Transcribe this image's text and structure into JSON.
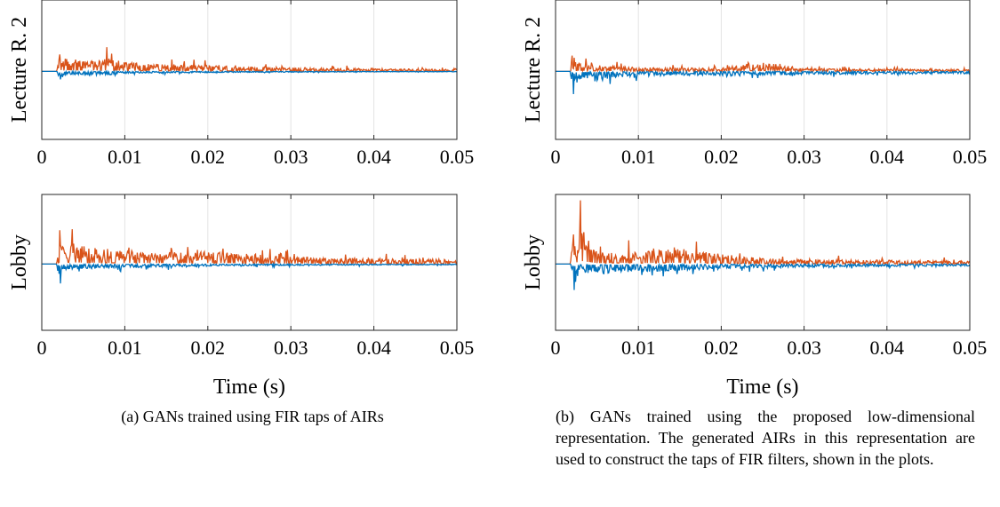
{
  "chart_data": [
    {
      "type": "line",
      "panel": "a",
      "ylabel": "Lecture R. 2",
      "xlabel": "",
      "xlim": [
        0,
        0.05
      ],
      "xticks": [
        "0",
        "0.01",
        "0.02",
        "0.03",
        "0.04",
        "0.05"
      ],
      "grid": "vertical",
      "series": [
        {
          "color": "#D95319",
          "role": "orange",
          "points": [
            [
              0.0018,
              0.02
            ],
            [
              0.002,
              0.2
            ],
            [
              0.0022,
              0.55
            ],
            [
              0.0025,
              0.25
            ],
            [
              0.003,
              0.35
            ],
            [
              0.004,
              0.3
            ],
            [
              0.005,
              0.28
            ],
            [
              0.006,
              0.3
            ],
            [
              0.007,
              0.3
            ],
            [
              0.008,
              0.32
            ],
            [
              0.009,
              0.25
            ],
            [
              0.01,
              0.22
            ],
            [
              0.012,
              0.2
            ],
            [
              0.015,
              0.18
            ],
            [
              0.02,
              0.15
            ],
            [
              0.025,
              0.12
            ],
            [
              0.03,
              0.1
            ],
            [
              0.035,
              0.08
            ],
            [
              0.04,
              0.07
            ],
            [
              0.045,
              0.06
            ],
            [
              0.05,
              0.05
            ]
          ]
        },
        {
          "color": "#0072BD",
          "role": "blue",
          "points": [
            [
              0.0018,
              -0.02
            ],
            [
              0.002,
              -0.15
            ],
            [
              0.0022,
              -0.35
            ],
            [
              0.0025,
              -0.15
            ],
            [
              0.003,
              -0.1
            ],
            [
              0.005,
              -0.08
            ],
            [
              0.008,
              -0.1
            ],
            [
              0.01,
              -0.05
            ],
            [
              0.015,
              -0.04
            ],
            [
              0.02,
              -0.03
            ],
            [
              0.03,
              -0.02
            ],
            [
              0.04,
              -0.015
            ],
            [
              0.05,
              -0.01
            ]
          ]
        }
      ]
    },
    {
      "type": "line",
      "panel": "b",
      "ylabel": "Lecture R. 2",
      "xlabel": "",
      "xlim": [
        0,
        0.05
      ],
      "xticks": [
        "0",
        "0.01",
        "0.02",
        "0.03",
        "0.04",
        "0.05"
      ],
      "grid": "vertical",
      "series": [
        {
          "color": "#D95319",
          "role": "orange",
          "points": [
            [
              0.0018,
              0.05
            ],
            [
              0.002,
              0.6
            ],
            [
              0.0021,
              1.05
            ],
            [
              0.0023,
              0.3
            ],
            [
              0.003,
              0.2
            ],
            [
              0.005,
              0.15
            ],
            [
              0.008,
              0.12
            ],
            [
              0.01,
              0.1
            ],
            [
              0.015,
              0.09
            ],
            [
              0.02,
              0.08
            ],
            [
              0.025,
              0.25
            ],
            [
              0.03,
              0.07
            ],
            [
              0.04,
              0.06
            ],
            [
              0.05,
              0.05
            ]
          ]
        },
        {
          "color": "#0072BD",
          "role": "blue",
          "points": [
            [
              0.0018,
              -0.05
            ],
            [
              0.002,
              -0.4
            ],
            [
              0.0022,
              -0.75
            ],
            [
              0.0025,
              -0.3
            ],
            [
              0.003,
              -0.2
            ],
            [
              0.005,
              -0.25
            ],
            [
              0.007,
              -0.15
            ],
            [
              0.01,
              -0.12
            ],
            [
              0.015,
              -0.1
            ],
            [
              0.02,
              -0.1
            ],
            [
              0.03,
              -0.08
            ],
            [
              0.04,
              -0.07
            ],
            [
              0.05,
              -0.06
            ]
          ]
        }
      ]
    },
    {
      "type": "line",
      "panel": "a",
      "ylabel": "Lobby",
      "xlabel": "Time (s)",
      "xlim": [
        0,
        0.05
      ],
      "xticks": [
        "0",
        "0.01",
        "0.02",
        "0.03",
        "0.04",
        "0.05"
      ],
      "grid": "vertical",
      "series": [
        {
          "color": "#D95319",
          "role": "orange",
          "points": [
            [
              0.0018,
              0.05
            ],
            [
              0.002,
              0.4
            ],
            [
              0.0022,
              0.72
            ],
            [
              0.0025,
              0.45
            ],
            [
              0.003,
              0.5
            ],
            [
              0.005,
              0.45
            ],
            [
              0.007,
              0.4
            ],
            [
              0.01,
              0.35
            ],
            [
              0.015,
              0.3
            ],
            [
              0.02,
              0.32
            ],
            [
              0.025,
              0.25
            ],
            [
              0.03,
              0.18
            ],
            [
              0.04,
              0.14
            ],
            [
              0.05,
              0.12
            ]
          ]
        },
        {
          "color": "#0072BD",
          "role": "blue",
          "points": [
            [
              0.0018,
              -0.05
            ],
            [
              0.002,
              -0.3
            ],
            [
              0.0022,
              -0.6
            ],
            [
              0.0025,
              -0.2
            ],
            [
              0.003,
              -0.15
            ],
            [
              0.005,
              -0.12
            ],
            [
              0.01,
              -0.1
            ],
            [
              0.015,
              -0.08
            ],
            [
              0.02,
              -0.05
            ],
            [
              0.03,
              -0.04
            ],
            [
              0.04,
              -0.03
            ],
            [
              0.05,
              -0.02
            ]
          ]
        }
      ]
    },
    {
      "type": "line",
      "panel": "b",
      "ylabel": "Lobby",
      "xlabel": "Time (s)",
      "xlim": [
        0,
        0.05
      ],
      "xticks": [
        "0",
        "0.01",
        "0.02",
        "0.03",
        "0.04",
        "0.05"
      ],
      "grid": "vertical",
      "series": [
        {
          "color": "#D95319",
          "role": "orange",
          "points": [
            [
              0.0018,
              0.05
            ],
            [
              0.002,
              0.7
            ],
            [
              0.0021,
              1.0
            ],
            [
              0.0024,
              0.35
            ],
            [
              0.003,
              0.95
            ],
            [
              0.005,
              0.3
            ],
            [
              0.008,
              0.35
            ],
            [
              0.01,
              0.3
            ],
            [
              0.015,
              0.4
            ],
            [
              0.02,
              0.25
            ],
            [
              0.025,
              0.15
            ],
            [
              0.03,
              0.12
            ],
            [
              0.04,
              0.1
            ],
            [
              0.05,
              0.08
            ]
          ]
        },
        {
          "color": "#0072BD",
          "role": "blue",
          "points": [
            [
              0.0018,
              -0.05
            ],
            [
              0.002,
              -0.5
            ],
            [
              0.0022,
              -0.85
            ],
            [
              0.0025,
              -0.3
            ],
            [
              0.003,
              -0.2
            ],
            [
              0.005,
              -0.25
            ],
            [
              0.01,
              -0.2
            ],
            [
              0.015,
              -0.18
            ],
            [
              0.02,
              -0.12
            ],
            [
              0.03,
              -0.08
            ],
            [
              0.04,
              -0.06
            ],
            [
              0.05,
              -0.05
            ]
          ]
        }
      ]
    }
  ],
  "captions": {
    "a": "(a) GANs trained using FIR taps of AIRs",
    "b": "(b) GANs trained using the proposed low-dimensional representation. The generated AIRs in this representation are used to construct the taps of FIR filters, shown in the plots."
  }
}
